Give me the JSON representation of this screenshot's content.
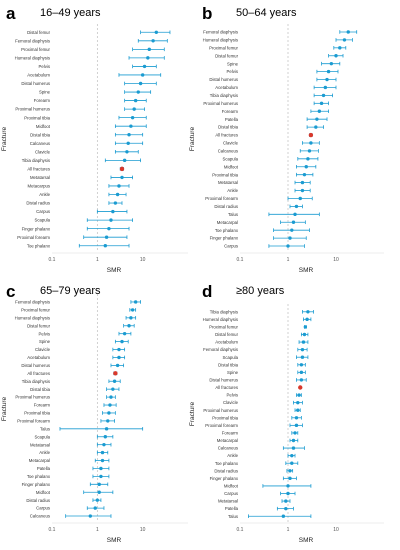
{
  "colors": {
    "marker": "#1a9bd1",
    "highlight": "#d9382b",
    "ref_line": "#bdbdbd",
    "axis": "#555555"
  },
  "chart_data": [
    {
      "type": "scatter",
      "panel_letter": "a",
      "title": "16–49 years",
      "xlabel": "SMR",
      "ylabel": "Fracture",
      "x_scale": "log",
      "xlim": [
        0.1,
        100
      ],
      "x_ticks": [
        "0.1",
        "1",
        "10"
      ],
      "highlight_category": "All fractures",
      "categories": [
        "Distal femur",
        "Femoral diaphysis",
        "Proximal femur",
        "Humeral diaphysis",
        "Pelvis",
        "Acetabulum",
        "Distal humerus",
        "Spine",
        "Forearm",
        "Proximal humerus",
        "Proximal tibia",
        "Midfoot",
        "Distal tibia",
        "Calcaneus",
        "Clavicle",
        "Tibia diaphysis",
        "All fractures",
        "Metatarsal",
        "Metacarpus",
        "Ankle",
        "Distal radius",
        "Carpus",
        "Scapula",
        "Finger phalanx",
        "Proximal forearm",
        "Toe phalanx"
      ],
      "estimates": [
        20,
        17,
        14,
        13,
        11,
        10,
        9,
        8,
        7,
        6.5,
        6,
        5.5,
        5,
        4.8,
        4.5,
        4,
        3.5,
        3.5,
        3,
        2.8,
        2.5,
        2.2,
        2,
        1.8,
        1.6,
        1.5
      ],
      "ci_lower": [
        9,
        8,
        6,
        5,
        6,
        3,
        4,
        4,
        4,
        4,
        3,
        2.5,
        2.5,
        2.5,
        2.5,
        1.5,
        3.2,
        2,
        1.8,
        1.8,
        1.8,
        1,
        0.6,
        0.6,
        0.5,
        0.4
      ],
      "ci_upper": [
        40,
        35,
        30,
        30,
        20,
        25,
        20,
        15,
        12,
        11,
        12,
        12,
        10,
        10,
        8,
        9,
        3.8,
        6,
        5,
        4.3,
        3.5,
        4.5,
        6,
        5,
        4.5,
        5
      ]
    },
    {
      "type": "scatter",
      "panel_letter": "b",
      "title": "50–64 years",
      "xlabel": "SMR",
      "ylabel": "Fracture",
      "x_scale": "log",
      "xlim": [
        0.1,
        100
      ],
      "x_ticks": [
        "0.1",
        "1",
        "10"
      ],
      "highlight_category": "All fractures",
      "categories": [
        "Femoral diaphysis",
        "Humeral diaphysis",
        "Proximal femur",
        "Distal femur",
        "Spine",
        "Pelvis",
        "Distal humerus",
        "Acetabulum",
        "Tibia diaphysis",
        "Proximal humerus",
        "Forearm",
        "Patella",
        "Distal tibia",
        "All fractures",
        "Clavicle",
        "Calcaneus",
        "Scapula",
        "Midfoot",
        "Proximal tibia",
        "Metatarsal",
        "Ankle",
        "Proximal forearm",
        "Distal radius",
        "Talus",
        "Metacarpal",
        "Toe phalanx",
        "Finger phalanx",
        "Carpus"
      ],
      "estimates": [
        18,
        15,
        12,
        10,
        8,
        7,
        6.5,
        6,
        5.5,
        5,
        4.5,
        4,
        3.8,
        3,
        3,
        2.8,
        2.6,
        2.4,
        2.2,
        2,
        2,
        1.8,
        1.5,
        1.4,
        1.3,
        1.2,
        1.1,
        1
      ],
      "ci_lower": [
        12,
        10,
        9,
        7,
        5,
        4,
        4,
        3.5,
        3.5,
        3.5,
        3,
        2.5,
        2.5,
        2.8,
        2,
        1.8,
        1.6,
        1.5,
        1.5,
        1.4,
        1.4,
        1,
        1.1,
        0.4,
        0.7,
        0.5,
        0.5,
        0.4
      ],
      "ci_upper": [
        27,
        22,
        16,
        14,
        12,
        11,
        10,
        10,
        8.5,
        7,
        7,
        6.5,
        5.5,
        3.2,
        4.5,
        4.3,
        4.2,
        3.8,
        3.3,
        2.9,
        2.9,
        3.2,
        2,
        4.5,
        2.3,
        2.8,
        2.4,
        2.2
      ]
    },
    {
      "type": "scatter",
      "panel_letter": "c",
      "title": "65–79 years",
      "xlabel": "SMR",
      "ylabel": "Fracture",
      "x_scale": "log",
      "xlim": [
        0.1,
        100
      ],
      "x_ticks": [
        "0.1",
        "1",
        "10"
      ],
      "highlight_category": "All fractures",
      "categories": [
        "Femoral diaphysis",
        "Proximal femur",
        "Humeral diaphysis",
        "Distal femur",
        "Pelvis",
        "Spine",
        "Clavicle",
        "Acetabulum",
        "Distal humerus",
        "All fractures",
        "Tibia diaphysis",
        "Distal tibia",
        "Proximal humerus",
        "Forearm",
        "Proximal tibia",
        "Proximal forearm",
        "Talus",
        "Scapula",
        "Metatarsal",
        "Ankle",
        "Metacarpal",
        "Patella",
        "Toe phalanx",
        "Finger phalanx",
        "Midfoot",
        "Distal radius",
        "Carpus",
        "Calcaneus"
      ],
      "estimates": [
        7,
        6,
        5.5,
        5,
        4,
        3.5,
        3,
        3,
        2.8,
        2.5,
        2.4,
        2.2,
        2,
        1.9,
        1.8,
        1.7,
        1.6,
        1.5,
        1.4,
        1.3,
        1.3,
        1.2,
        1.2,
        1.1,
        1.1,
        1,
        0.9,
        0.7
      ],
      "ci_lower": [
        5.5,
        5.2,
        4.3,
        3.8,
        3,
        2.5,
        2.2,
        2.2,
        2,
        2.3,
        1.8,
        1.6,
        1.6,
        1.4,
        1.3,
        1.2,
        0.15,
        1,
        1,
        1,
        0.9,
        0.8,
        0.8,
        0.7,
        0.5,
        0.8,
        0.6,
        0.2
      ],
      "ci_upper": [
        9,
        7,
        7,
        6.5,
        5.5,
        4.8,
        4,
        4,
        3.8,
        2.7,
        3.2,
        3,
        2.5,
        2.6,
        2.5,
        2.4,
        10,
        2.2,
        2,
        1.7,
        1.8,
        1.8,
        1.8,
        1.7,
        2.2,
        1.2,
        1.4,
        2
      ]
    },
    {
      "type": "scatter",
      "panel_letter": "d",
      "title": "≥80 years",
      "xlabel": "SMR",
      "ylabel": "Fracture",
      "x_scale": "log",
      "xlim": [
        0.1,
        100
      ],
      "x_ticks": [
        "0.1",
        "1",
        "10"
      ],
      "highlight_category": "All fractures",
      "categories": [
        "Tibia diaphysis",
        "Humeral diaphysis",
        "Proximal femur",
        "Distal femur",
        "Acetabulum",
        "Femoral diaphysis",
        "Scapula",
        "Distal tibia",
        "Spine",
        "Distal humerus",
        "All fractures",
        "Pelvis",
        "Clavicle",
        "Proximal humerus",
        "Proximal tibia",
        "Proximal forearm",
        "Forearm",
        "Metacarpal",
        "Calcaneus",
        "Ankle",
        "Toe phalanx",
        "Distal radius",
        "Finger phalanx",
        "Midfoot",
        "Carpus",
        "Metatarsal",
        "Patella",
        "Talus"
      ],
      "estimates": [
        2.6,
        2.5,
        2.3,
        2.2,
        2.1,
        2,
        2,
        1.9,
        1.9,
        1.9,
        1.8,
        1.7,
        1.6,
        1.6,
        1.5,
        1.5,
        1.4,
        1.3,
        1.3,
        1.2,
        1.2,
        1.1,
        1.1,
        1,
        1,
        0.9,
        0.9,
        0.8
      ],
      "ci_lower": [
        2,
        2.1,
        2.2,
        1.9,
        1.7,
        1.6,
        1.5,
        1.6,
        1.6,
        1.5,
        1.75,
        1.5,
        1.3,
        1.4,
        1.2,
        1.1,
        1.2,
        1.1,
        0.8,
        1,
        0.9,
        0.95,
        0.8,
        0.3,
        0.7,
        0.75,
        0.6,
        0.15
      ],
      "ci_upper": [
        3.4,
        3,
        2.4,
        2.6,
        2.6,
        2.5,
        2.6,
        2.3,
        2.3,
        2.4,
        1.85,
        1.9,
        2,
        1.8,
        1.9,
        2,
        1.6,
        1.6,
        2.2,
        1.4,
        1.6,
        1.25,
        1.5,
        3,
        1.4,
        1.1,
        1.3,
        3
      ]
    }
  ]
}
